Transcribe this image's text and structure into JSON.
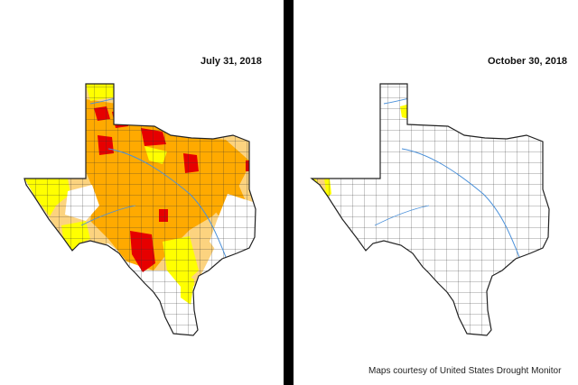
{
  "maps": [
    {
      "date": "July 31, 2018"
    },
    {
      "date": "October 30, 2018"
    }
  ],
  "credit": "Maps courtesy of United States Drought Monitor",
  "colors": {
    "abnormally_dry": "#ffff00",
    "moderate": "#fcd37f",
    "severe": "#ffaa00",
    "extreme": "#e60000",
    "exceptional": "#730000",
    "county_lines": "#333333",
    "rivers": "#4a90d9",
    "divider": "#000000"
  },
  "icons": [
    "texas-map"
  ]
}
